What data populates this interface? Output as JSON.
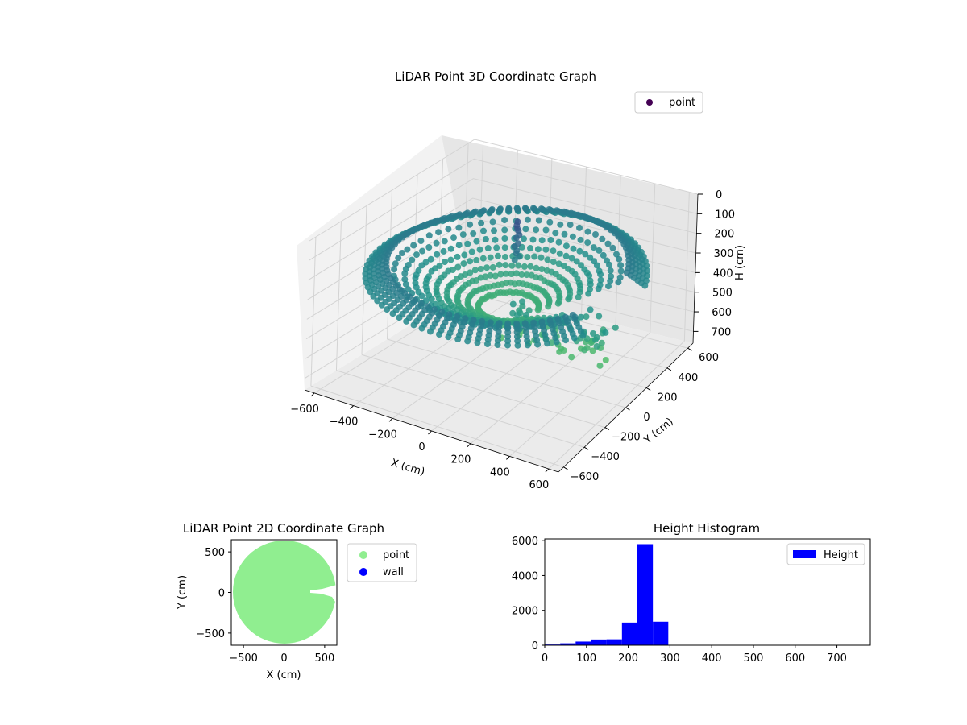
{
  "chart_data": [
    {
      "type": "scatter",
      "projection": "3d",
      "title": "LiDAR Point 3D Coordinate Graph",
      "xlabel": "X (cm)",
      "ylabel": "Y (cm)",
      "zlabel": "H (cm)",
      "xlim": [
        -650,
        650
      ],
      "ylim": [
        -650,
        650
      ],
      "zlim": [
        760,
        0
      ],
      "x_ticks": [
        -600,
        -400,
        -200,
        0,
        200,
        400,
        600
      ],
      "y_ticks": [
        -600,
        -400,
        -200,
        0,
        200,
        400,
        600
      ],
      "z_ticks": [
        0,
        100,
        200,
        300,
        400,
        500,
        600,
        700
      ],
      "colormap": "viridis",
      "legend": {
        "entries": [
          "point"
        ],
        "placement": "top-right"
      },
      "series": [
        {
          "name": "point",
          "color_by": "height",
          "description_points": [
            {
              "x": 600,
              "y": 0,
              "h": 230
            },
            {
              "x": 424,
              "y": 424,
              "h": 230
            },
            {
              "x": 0,
              "y": 600,
              "h": 230
            },
            {
              "x": -424,
              "y": 424,
              "h": 230
            },
            {
              "x": -600,
              "y": 0,
              "h": 230
            },
            {
              "x": -424,
              "y": -424,
              "h": 230
            },
            {
              "x": 0,
              "y": -600,
              "h": 230
            },
            {
              "x": 424,
              "y": -424,
              "h": 230
            },
            {
              "x": 350,
              "y": 0,
              "h": 420
            },
            {
              "x": 0,
              "y": 350,
              "h": 420
            },
            {
              "x": -350,
              "y": 0,
              "h": 420
            },
            {
              "x": 0,
              "y": -350,
              "h": 420
            },
            {
              "x": 0,
              "y": 0,
              "h": 60
            }
          ]
        }
      ],
      "grid": true
    },
    {
      "type": "scatter",
      "title": "LiDAR Point 2D Coordinate Graph",
      "xlabel": "X (cm)",
      "ylabel": "Y (cm)",
      "xlim": [
        -650,
        650
      ],
      "ylim": [
        -650,
        650
      ],
      "x_ticks": [
        -500,
        0,
        500
      ],
      "y_ticks": [
        -500,
        0,
        500
      ],
      "series": [
        {
          "name": "point",
          "color": "#90ee90",
          "shape": "filled disc",
          "center": [
            0,
            0
          ],
          "radius": 640
        },
        {
          "name": "wall",
          "color": "#0000ff"
        }
      ],
      "legend": {
        "entries": [
          "point",
          "wall"
        ],
        "placement": "outside-right"
      }
    },
    {
      "type": "bar",
      "subtype": "histogram",
      "title": "Height Histogram",
      "xlim": [
        0,
        780
      ],
      "ylim": [
        0,
        6100
      ],
      "x_ticks": [
        0,
        100,
        200,
        300,
        400,
        500,
        600,
        700
      ],
      "y_ticks": [
        0,
        2000,
        4000,
        6000
      ],
      "bins": [
        {
          "x0": 0,
          "x1": 37,
          "value": 40
        },
        {
          "x0": 37,
          "x1": 74,
          "value": 110
        },
        {
          "x0": 74,
          "x1": 111,
          "value": 210
        },
        {
          "x0": 111,
          "x1": 148,
          "value": 330
        },
        {
          "x0": 148,
          "x1": 185,
          "value": 340
        },
        {
          "x0": 185,
          "x1": 222,
          "value": 1300
        },
        {
          "x0": 222,
          "x1": 259,
          "value": 5800
        },
        {
          "x0": 259,
          "x1": 296,
          "value": 1350
        },
        {
          "x0": 296,
          "x1": 333,
          "value": 15
        },
        {
          "x0": 333,
          "x1": 370,
          "value": 10
        },
        {
          "x0": 370,
          "x1": 407,
          "value": 8
        },
        {
          "x0": 407,
          "x1": 444,
          "value": 6
        },
        {
          "x0": 444,
          "x1": 481,
          "value": 5
        },
        {
          "x0": 481,
          "x1": 518,
          "value": 4
        },
        {
          "x0": 518,
          "x1": 555,
          "value": 3
        },
        {
          "x0": 555,
          "x1": 592,
          "value": 3
        },
        {
          "x0": 592,
          "x1": 629,
          "value": 2
        },
        {
          "x0": 629,
          "x1": 666,
          "value": 2
        },
        {
          "x0": 666,
          "x1": 703,
          "value": 1
        },
        {
          "x0": 703,
          "x1": 740,
          "value": 1
        }
      ],
      "color": "#0000ff",
      "legend": {
        "entries": [
          "Height"
        ],
        "placement": "top-right"
      }
    }
  ]
}
